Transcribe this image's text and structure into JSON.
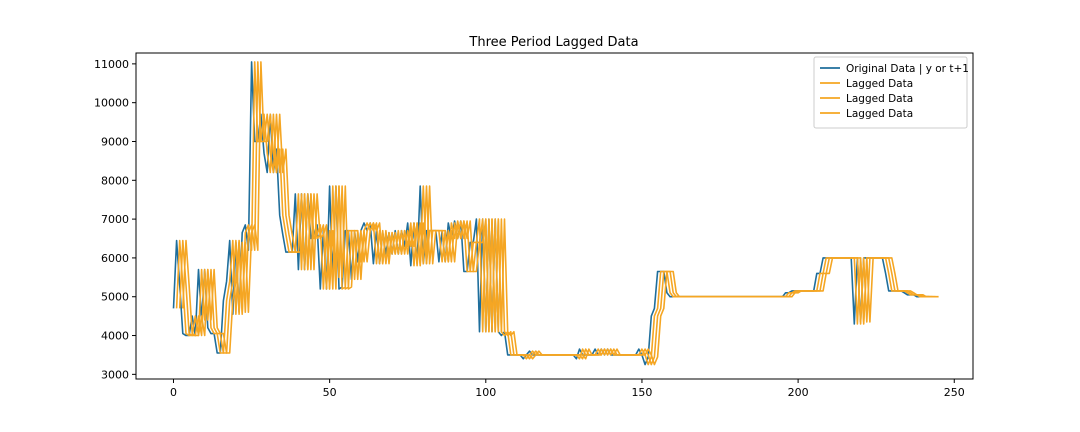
{
  "chart_data": {
    "type": "line",
    "title": "Three Period Lagged Data",
    "xlabel": "",
    "ylabel": "",
    "xlim": [
      -12,
      256
    ],
    "ylim": [
      2880,
      11280
    ],
    "x_ticks": [
      0,
      50,
      100,
      150,
      200,
      250
    ],
    "y_ticks": [
      3000,
      4000,
      5000,
      6000,
      7000,
      8000,
      9000,
      10000,
      11000
    ],
    "grid": false,
    "legend_position": "top-right",
    "colors": {
      "original": "#1f6e9c",
      "lagged": "#f5a623"
    },
    "original_key": [
      [
        0,
        4700
      ],
      [
        1,
        6450
      ],
      [
        2,
        5300
      ],
      [
        3,
        4050
      ],
      [
        4,
        4000
      ],
      [
        5,
        4000
      ],
      [
        6,
        4500
      ],
      [
        7,
        4000
      ],
      [
        8,
        5700
      ],
      [
        9,
        4400
      ],
      [
        10,
        5700
      ],
      [
        11,
        4200
      ],
      [
        12,
        4050
      ],
      [
        13,
        4050
      ],
      [
        14,
        3550
      ],
      [
        15,
        3550
      ],
      [
        16,
        4900
      ],
      [
        17,
        5400
      ],
      [
        18,
        6450
      ],
      [
        19,
        4550
      ],
      [
        20,
        6400
      ],
      [
        21,
        4600
      ],
      [
        22,
        6650
      ],
      [
        23,
        6850
      ],
      [
        24,
        6200
      ],
      [
        25,
        11050
      ],
      [
        26,
        9000
      ],
      [
        27,
        9000
      ],
      [
        28,
        9700
      ],
      [
        29,
        8700
      ],
      [
        30,
        8200
      ],
      [
        31,
        9700
      ],
      [
        32,
        8200
      ],
      [
        33,
        8800
      ],
      [
        34,
        7100
      ],
      [
        35,
        6600
      ],
      [
        36,
        6150
      ],
      [
        37,
        6150
      ],
      [
        38,
        6150
      ],
      [
        39,
        7650
      ],
      [
        40,
        5700
      ],
      [
        41,
        7650
      ],
      [
        42,
        5700
      ],
      [
        43,
        7650
      ],
      [
        44,
        6500
      ],
      [
        45,
        6600
      ],
      [
        46,
        6850
      ],
      [
        47,
        5200
      ],
      [
        48,
        6700
      ],
      [
        49,
        5200
      ],
      [
        50,
        7850
      ],
      [
        51,
        5500
      ],
      [
        52,
        7850
      ],
      [
        53,
        5200
      ],
      [
        54,
        5250
      ],
      [
        55,
        6700
      ],
      [
        56,
        6700
      ],
      [
        57,
        5450
      ],
      [
        58,
        6700
      ],
      [
        59,
        5900
      ],
      [
        60,
        6700
      ],
      [
        61,
        6900
      ],
      [
        62,
        6700
      ],
      [
        63,
        6900
      ],
      [
        64,
        5850
      ],
      [
        65,
        6700
      ],
      [
        66,
        5850
      ],
      [
        67,
        6650
      ],
      [
        68,
        6100
      ],
      [
        69,
        6650
      ],
      [
        70,
        6100
      ],
      [
        71,
        6700
      ],
      [
        72,
        6100
      ],
      [
        73,
        6700
      ],
      [
        74,
        6300
      ],
      [
        75,
        6900
      ],
      [
        76,
        5800
      ],
      [
        77,
        6900
      ],
      [
        78,
        5850
      ],
      [
        79,
        7850
      ],
      [
        80,
        5850
      ],
      [
        81,
        6700
      ],
      [
        82,
        6700
      ],
      [
        83,
        6700
      ],
      [
        84,
        6700
      ],
      [
        85,
        5900
      ],
      [
        86,
        6700
      ],
      [
        87,
        5900
      ],
      [
        88,
        6900
      ],
      [
        89,
        6500
      ],
      [
        90,
        6950
      ],
      [
        91,
        6500
      ],
      [
        92,
        6950
      ],
      [
        93,
        5650
      ],
      [
        94,
        5650
      ],
      [
        95,
        6400
      ],
      [
        96,
        6400
      ],
      [
        97,
        7000
      ],
      [
        98,
        4100
      ],
      [
        99,
        7000
      ],
      [
        100,
        4100
      ],
      [
        101,
        7000
      ],
      [
        102,
        4100
      ],
      [
        103,
        7000
      ],
      [
        104,
        4100
      ],
      [
        105,
        4000
      ],
      [
        106,
        4100
      ],
      [
        107,
        3500
      ],
      [
        108,
        3500
      ],
      [
        109,
        3500
      ],
      [
        110,
        3500
      ],
      [
        111,
        3500
      ],
      [
        112,
        3400
      ],
      [
        113,
        3500
      ],
      [
        114,
        3600
      ],
      [
        115,
        3500
      ],
      [
        116,
        3500
      ],
      [
        117,
        3500
      ],
      [
        118,
        3500
      ],
      [
        128,
        3500
      ],
      [
        129,
        3400
      ],
      [
        130,
        3650
      ],
      [
        131,
        3500
      ],
      [
        134,
        3500
      ],
      [
        135,
        3650
      ],
      [
        136,
        3500
      ],
      [
        137,
        3650
      ],
      [
        138,
        3500
      ],
      [
        139,
        3650
      ],
      [
        140,
        3500
      ],
      [
        148,
        3500
      ],
      [
        149,
        3650
      ],
      [
        150,
        3500
      ],
      [
        151,
        3250
      ],
      [
        152,
        3450
      ],
      [
        153,
        4500
      ],
      [
        154,
        4700
      ],
      [
        155,
        5650
      ],
      [
        156,
        5650
      ],
      [
        157,
        5650
      ],
      [
        158,
        5100
      ],
      [
        159,
        5000
      ],
      [
        160,
        5000
      ],
      [
        161,
        5000
      ],
      [
        162,
        5000
      ],
      [
        163,
        5000
      ],
      [
        195,
        5000
      ],
      [
        196,
        5100
      ],
      [
        197,
        5100
      ],
      [
        198,
        5150
      ],
      [
        199,
        5150
      ],
      [
        205,
        5150
      ],
      [
        206,
        5600
      ],
      [
        207,
        5600
      ],
      [
        208,
        6000
      ],
      [
        209,
        6000
      ],
      [
        210,
        6000
      ],
      [
        217,
        6000
      ],
      [
        218,
        4300
      ],
      [
        219,
        6000
      ],
      [
        220,
        4350
      ],
      [
        221,
        6000
      ],
      [
        222,
        6000
      ],
      [
        226,
        6000
      ],
      [
        227,
        6000
      ],
      [
        228,
        5600
      ],
      [
        229,
        5150
      ],
      [
        230,
        5150
      ],
      [
        231,
        5150
      ],
      [
        232,
        5150
      ],
      [
        233,
        5150
      ],
      [
        234,
        5100
      ],
      [
        235,
        5050
      ],
      [
        236,
        5050
      ],
      [
        237,
        5050
      ],
      [
        238,
        5000
      ],
      [
        242,
        5000
      ]
    ],
    "series": [
      {
        "name": "Original Data | y or t+1",
        "lag": 0,
        "color": "#1f6e9c"
      },
      {
        "name": "Lagged Data",
        "lag": 1,
        "color": "#f5a623"
      },
      {
        "name": "Lagged Data",
        "lag": 2,
        "color": "#f5a623"
      },
      {
        "name": "Lagged Data",
        "lag": 3,
        "color": "#f5a623"
      }
    ]
  }
}
